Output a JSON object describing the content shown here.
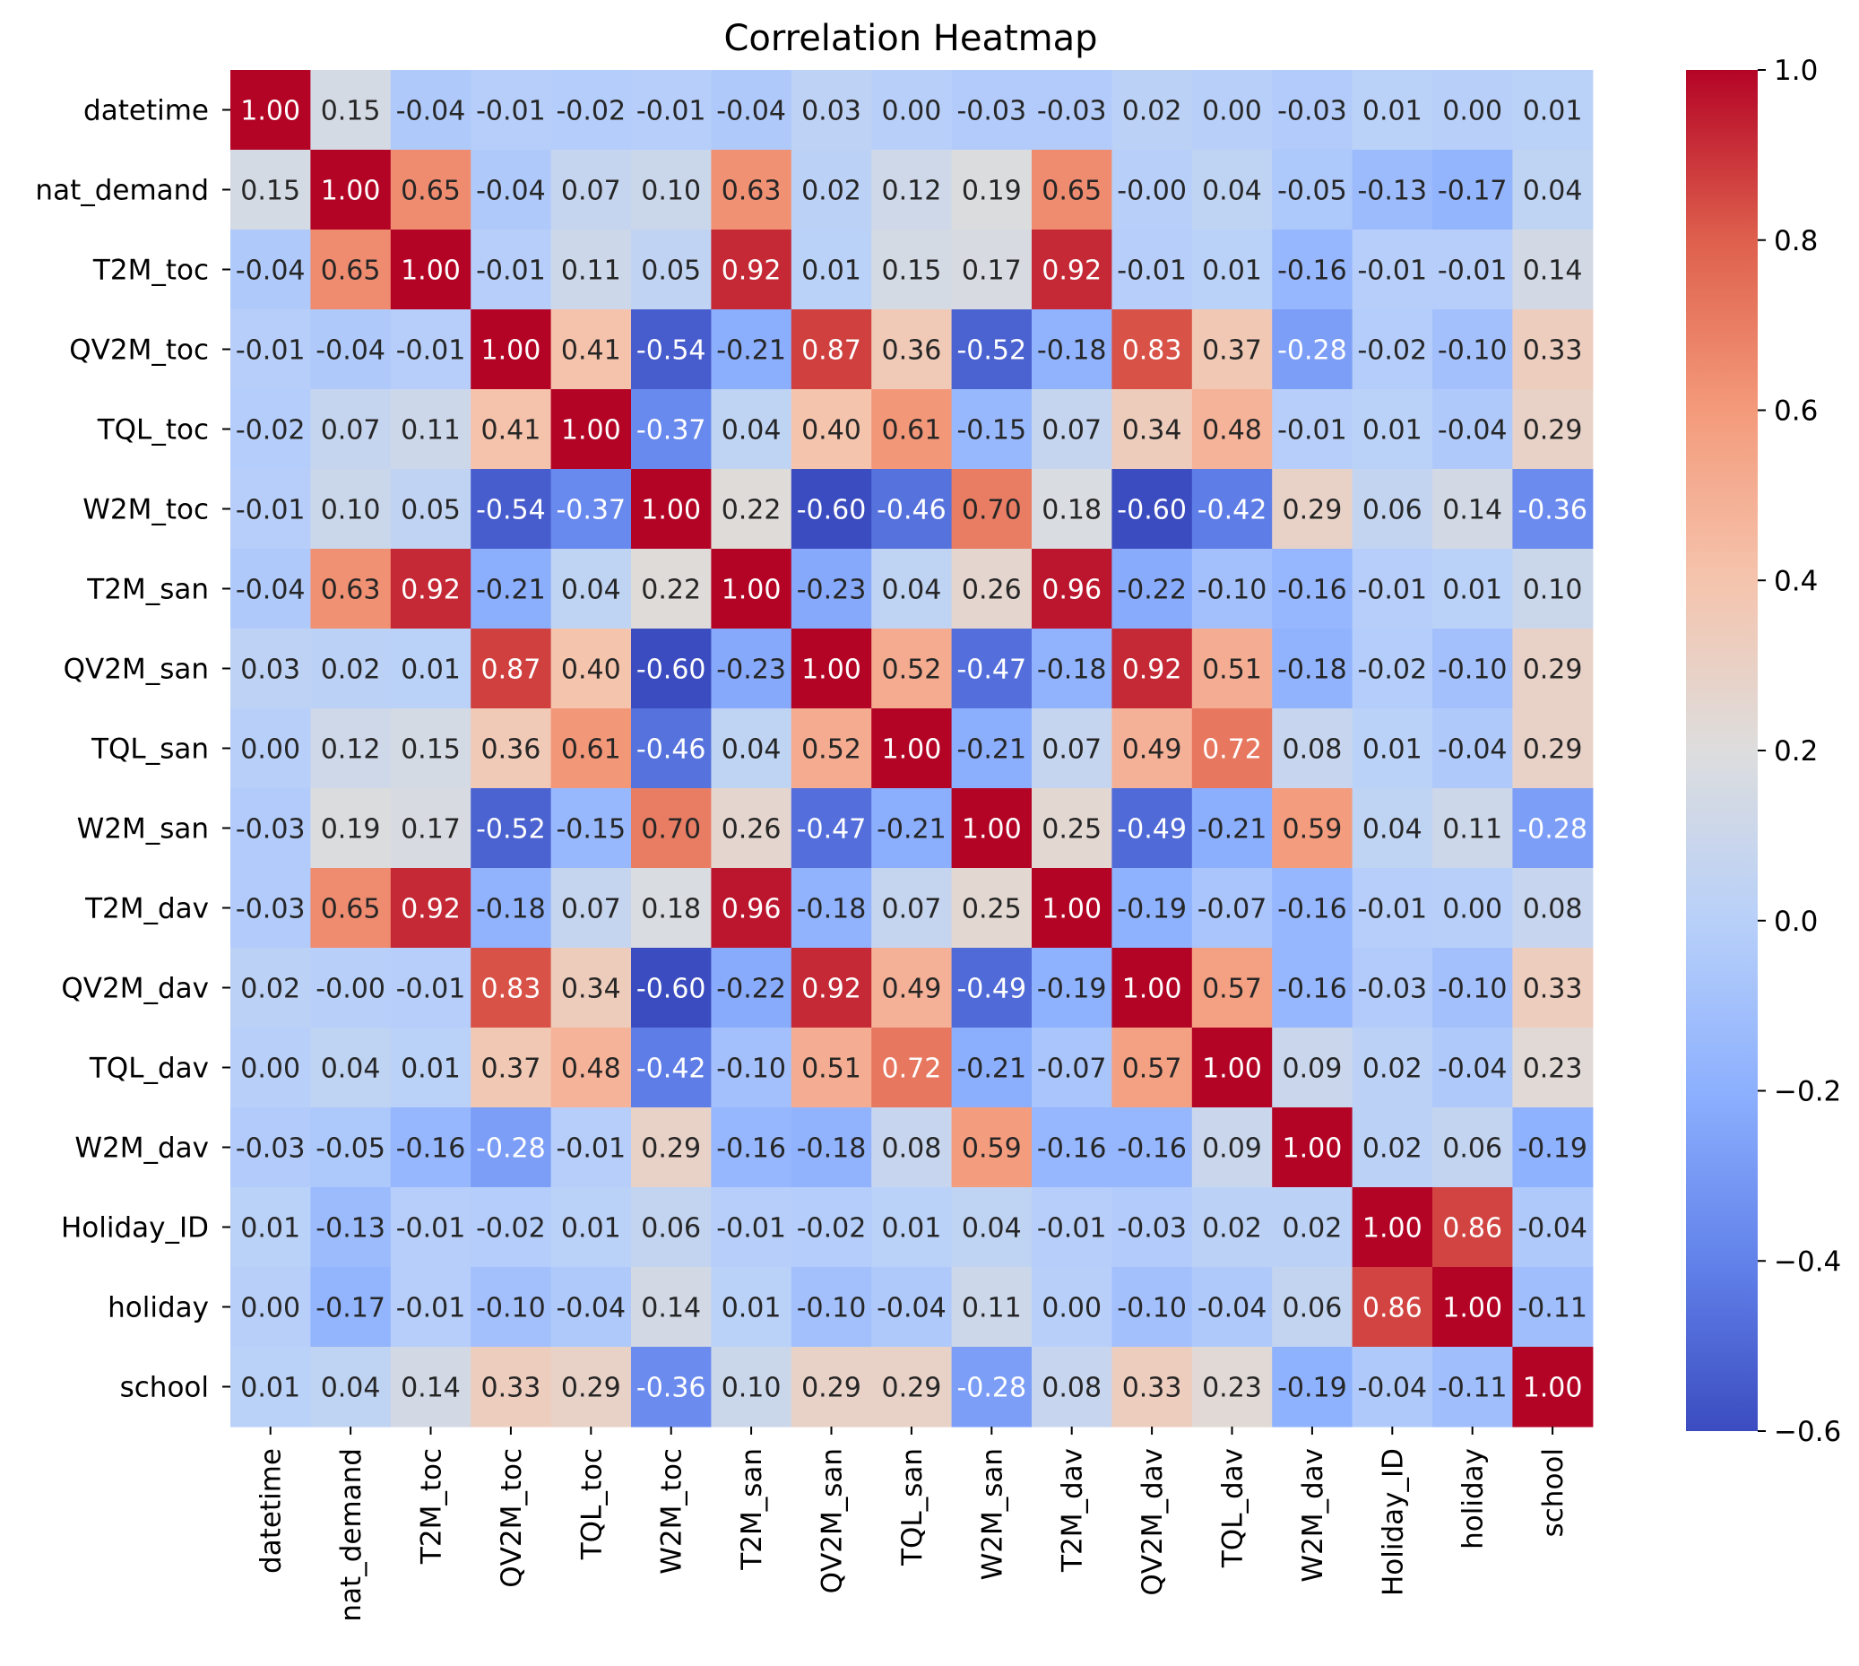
{
  "chart_data": {
    "type": "heatmap",
    "title": "Correlation Heatmap",
    "xlabel": "",
    "ylabel": "",
    "colormap": "coolwarm",
    "colorbar": {
      "vmin": -0.6,
      "vmax": 1.0,
      "ticks": [
        1.0,
        0.8,
        0.6,
        0.4,
        0.2,
        0.0,
        -0.2,
        -0.4,
        -0.6
      ],
      "tick_labels": [
        "1.0",
        "0.8",
        "0.6",
        "0.4",
        "0.2",
        "0.0",
        "−0.2",
        "−0.4",
        "−0.6"
      ],
      "placement": "right"
    },
    "colors": {
      "low": "#3b4cc0",
      "mid": "#dddddd",
      "high": "#b40426"
    },
    "rows": [
      "datetime",
      "nat_demand",
      "T2M_toc",
      "QV2M_toc",
      "TQL_toc",
      "W2M_toc",
      "T2M_san",
      "QV2M_san",
      "TQL_san",
      "W2M_san",
      "T2M_dav",
      "QV2M_dav",
      "TQL_dav",
      "W2M_dav",
      "Holiday_ID",
      "holiday",
      "school"
    ],
    "columns": [
      "datetime",
      "nat_demand",
      "T2M_toc",
      "QV2M_toc",
      "TQL_toc",
      "W2M_toc",
      "T2M_san",
      "QV2M_san",
      "TQL_san",
      "W2M_san",
      "T2M_dav",
      "QV2M_dav",
      "TQL_dav",
      "W2M_dav",
      "Holiday_ID",
      "holiday",
      "school"
    ],
    "values": [
      [
        1.0,
        0.15,
        -0.04,
        -0.01,
        -0.02,
        -0.01,
        -0.04,
        0.03,
        0.0,
        -0.03,
        -0.03,
        0.02,
        0.0,
        -0.03,
        0.01,
        0.0,
        0.01
      ],
      [
        0.15,
        1.0,
        0.65,
        -0.04,
        0.07,
        0.1,
        0.63,
        0.02,
        0.12,
        0.19,
        0.65,
        -0.0,
        0.04,
        -0.05,
        -0.13,
        -0.17,
        0.04
      ],
      [
        -0.04,
        0.65,
        1.0,
        -0.01,
        0.11,
        0.05,
        0.92,
        0.01,
        0.15,
        0.17,
        0.92,
        -0.01,
        0.01,
        -0.16,
        -0.01,
        -0.01,
        0.14
      ],
      [
        -0.01,
        -0.04,
        -0.01,
        1.0,
        0.41,
        -0.54,
        -0.21,
        0.87,
        0.36,
        -0.52,
        -0.18,
        0.83,
        0.37,
        -0.28,
        -0.02,
        -0.1,
        0.33
      ],
      [
        -0.02,
        0.07,
        0.11,
        0.41,
        1.0,
        -0.37,
        0.04,
        0.4,
        0.61,
        -0.15,
        0.07,
        0.34,
        0.48,
        -0.01,
        0.01,
        -0.04,
        0.29
      ],
      [
        -0.01,
        0.1,
        0.05,
        -0.54,
        -0.37,
        1.0,
        0.22,
        -0.6,
        -0.46,
        0.7,
        0.18,
        -0.6,
        -0.42,
        0.29,
        0.06,
        0.14,
        -0.36
      ],
      [
        -0.04,
        0.63,
        0.92,
        -0.21,
        0.04,
        0.22,
        1.0,
        -0.23,
        0.04,
        0.26,
        0.96,
        -0.22,
        -0.1,
        -0.16,
        -0.01,
        0.01,
        0.1
      ],
      [
        0.03,
        0.02,
        0.01,
        0.87,
        0.4,
        -0.6,
        -0.23,
        1.0,
        0.52,
        -0.47,
        -0.18,
        0.92,
        0.51,
        -0.18,
        -0.02,
        -0.1,
        0.29
      ],
      [
        0.0,
        0.12,
        0.15,
        0.36,
        0.61,
        -0.46,
        0.04,
        0.52,
        1.0,
        -0.21,
        0.07,
        0.49,
        0.72,
        0.08,
        0.01,
        -0.04,
        0.29
      ],
      [
        -0.03,
        0.19,
        0.17,
        -0.52,
        -0.15,
        0.7,
        0.26,
        -0.47,
        -0.21,
        1.0,
        0.25,
        -0.49,
        -0.21,
        0.59,
        0.04,
        0.11,
        -0.28
      ],
      [
        -0.03,
        0.65,
        0.92,
        -0.18,
        0.07,
        0.18,
        0.96,
        -0.18,
        0.07,
        0.25,
        1.0,
        -0.19,
        -0.07,
        -0.16,
        -0.01,
        0.0,
        0.08
      ],
      [
        0.02,
        -0.0,
        -0.01,
        0.83,
        0.34,
        -0.6,
        -0.22,
        0.92,
        0.49,
        -0.49,
        -0.19,
        1.0,
        0.57,
        -0.16,
        -0.03,
        -0.1,
        0.33
      ],
      [
        0.0,
        0.04,
        0.01,
        0.37,
        0.48,
        -0.42,
        -0.1,
        0.51,
        0.72,
        -0.21,
        -0.07,
        0.57,
        1.0,
        0.09,
        0.02,
        -0.04,
        0.23
      ],
      [
        -0.03,
        -0.05,
        -0.16,
        -0.28,
        -0.01,
        0.29,
        -0.16,
        -0.18,
        0.08,
        0.59,
        -0.16,
        -0.16,
        0.09,
        1.0,
        0.02,
        0.06,
        -0.19
      ],
      [
        0.01,
        -0.13,
        -0.01,
        -0.02,
        0.01,
        0.06,
        -0.01,
        -0.02,
        0.01,
        0.04,
        -0.01,
        -0.03,
        0.02,
        0.02,
        1.0,
        0.86,
        -0.04
      ],
      [
        0.0,
        -0.17,
        -0.01,
        -0.1,
        -0.04,
        0.14,
        0.01,
        -0.1,
        -0.04,
        0.11,
        0.0,
        -0.1,
        -0.04,
        0.06,
        0.86,
        1.0,
        -0.11
      ],
      [
        0.01,
        0.04,
        0.14,
        0.33,
        0.29,
        -0.36,
        0.1,
        0.29,
        0.29,
        -0.28,
        0.08,
        0.33,
        0.23,
        -0.19,
        -0.04,
        -0.11,
        1.0
      ]
    ]
  }
}
